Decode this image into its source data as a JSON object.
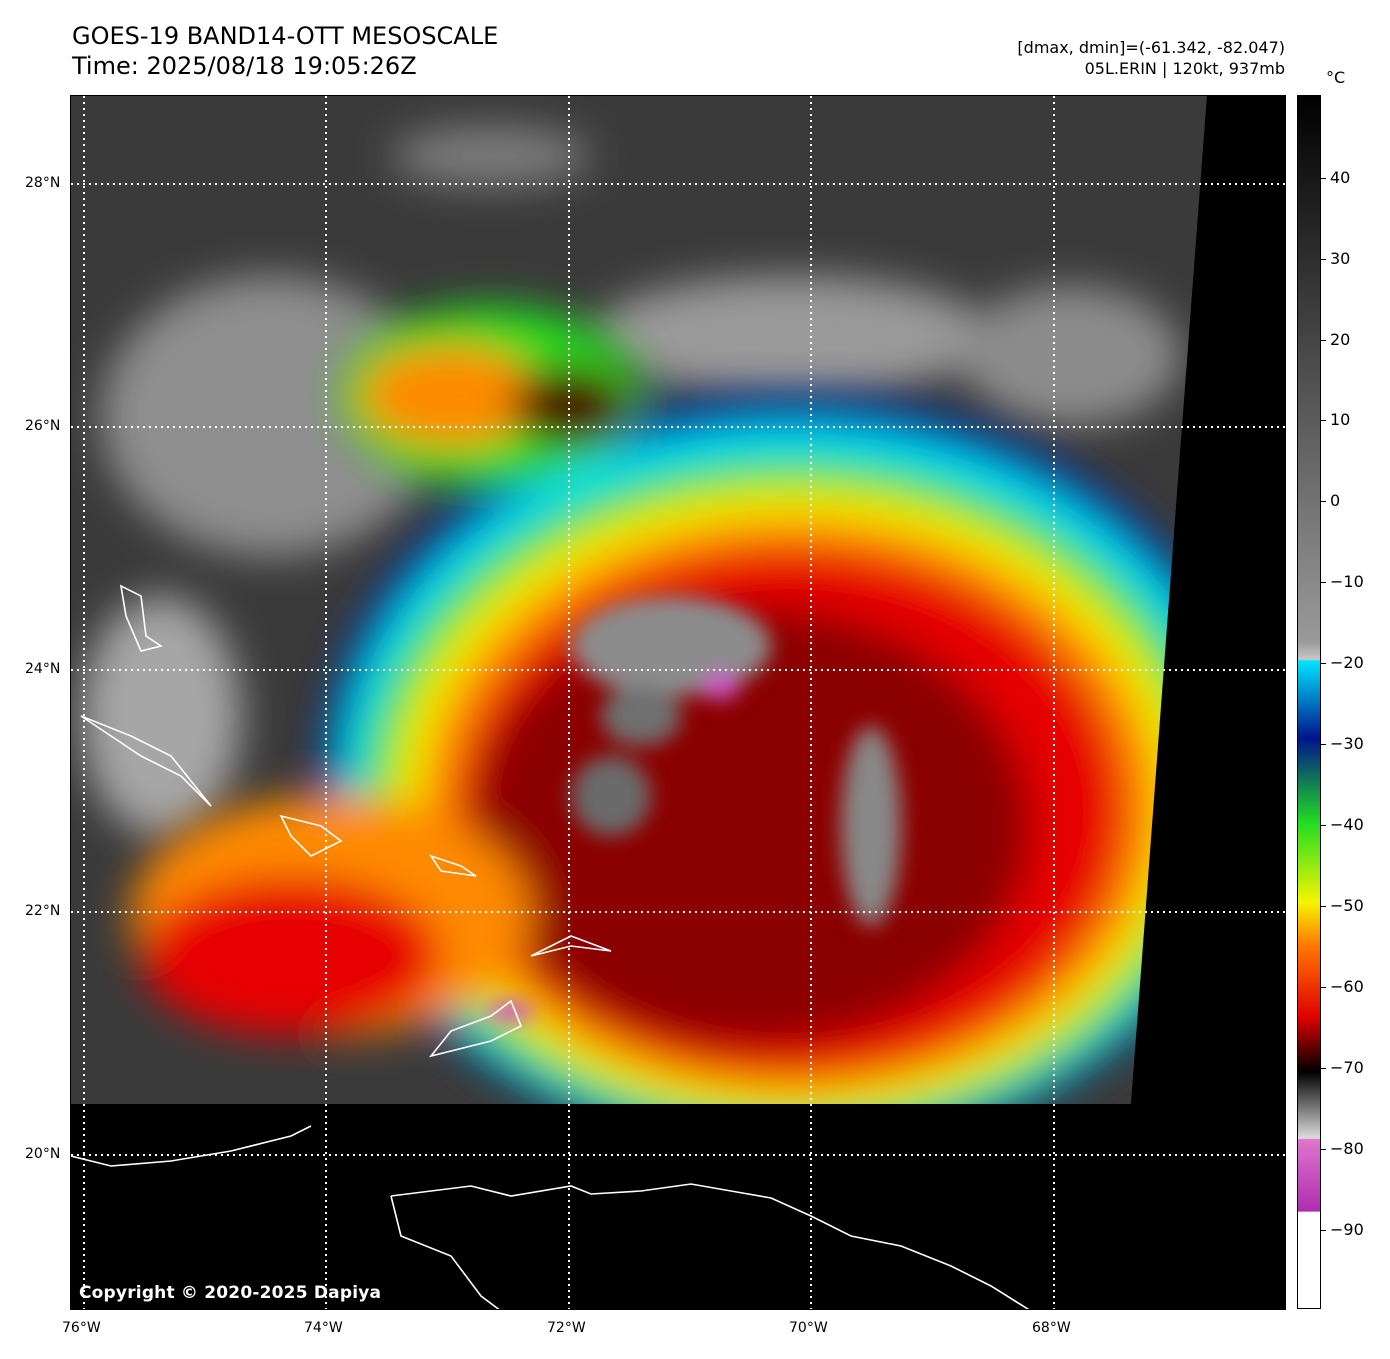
{
  "header": {
    "title_line1": "GOES-19 BAND14-OTT MESOSCALE",
    "title_line2": "Time: 2025/08/18 19:05:26Z",
    "info_line1": "[dmax, dmin]=(-61.342, -82.047)",
    "info_line2": "05L.ERIN | 120kt, 937mb"
  },
  "map": {
    "copyright": "Copyright © 2020-2025 Dapiya",
    "lat_labels": [
      "28°N",
      "26°N",
      "24°N",
      "22°N",
      "20°N"
    ],
    "lon_labels": [
      "76°W",
      "74°W",
      "72°W",
      "70°W",
      "68°W"
    ]
  },
  "colorbar": {
    "unit": "°C",
    "tick_labels": [
      "40",
      "30",
      "20",
      "10",
      "0",
      "−10",
      "−20",
      "−30",
      "−40",
      "−50",
      "−60",
      "−70",
      "−80",
      "−90"
    ],
    "colors": {
      "warm": "#000000",
      "gray": "#9a9a9a",
      "cyan": "#00e5ff",
      "blue": "#00148c",
      "green": "#22dd22",
      "yellow": "#f5f500",
      "orange": "#ff7a00",
      "red": "#e00000",
      "darkred": "#4a0000",
      "magenta": "#b02cb0",
      "cold": "#ffffff"
    }
  }
}
